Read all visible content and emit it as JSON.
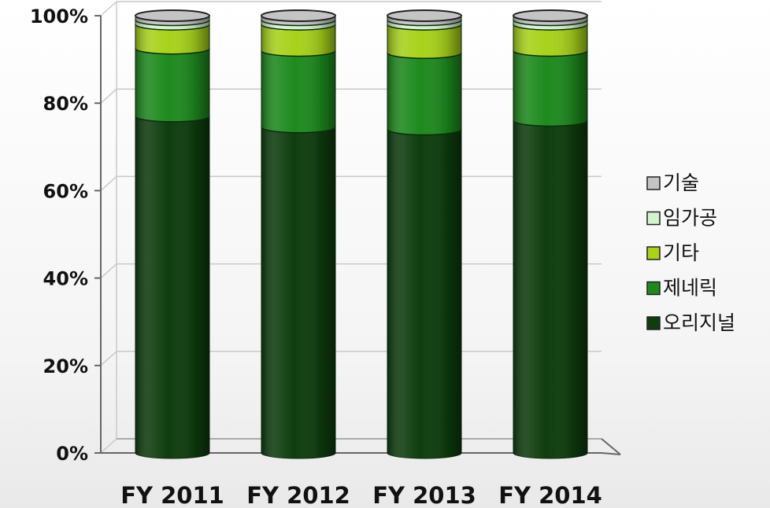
{
  "chart_data": {
    "type": "bar",
    "stacked": true,
    "percent": true,
    "categories": [
      "FY 2011",
      "FY 2012",
      "FY 2013",
      "FY 2014"
    ],
    "series": [
      {
        "name": "오리지널",
        "color": "#0e3d0e",
        "values": [
          77,
          74.5,
          74,
          76
        ]
      },
      {
        "name": "제네릭",
        "color": "#1e8a1e",
        "values": [
          15.5,
          17.5,
          17.5,
          16
        ]
      },
      {
        "name": "기타",
        "color": "#a8d21c",
        "values": [
          5.5,
          6,
          6.5,
          6
        ]
      },
      {
        "name": "임가공",
        "color": "#d4f2cf",
        "values": [
          1,
          1,
          1,
          1
        ]
      },
      {
        "name": "기술",
        "color": "#c4c4c4",
        "values": [
          1,
          1,
          1,
          1
        ]
      }
    ],
    "ylim": [
      0,
      100
    ],
    "y_ticks": [
      "0%",
      "20%",
      "40%",
      "60%",
      "80%",
      "100%"
    ],
    "legend_order": [
      "기술",
      "임가공",
      "기타",
      "제네릭",
      "오리지널"
    ],
    "legend_position": "right",
    "grid": true
  }
}
